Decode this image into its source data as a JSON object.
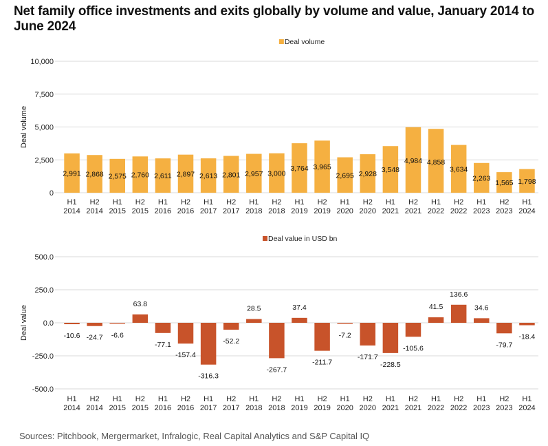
{
  "title": "Net family office investments and exits globally by volume and value, January 2014 to June 2024",
  "source": "Sources: Pitchbook, Mergermarket, Infralogic, Real Capital Analytics and S&P Capital IQ",
  "chart_data": [
    {
      "type": "bar",
      "title": "",
      "legend": "Deal volume",
      "legend_position": "top-center",
      "color": "#F5B041",
      "xlabel": "",
      "ylabel": "Deal volume",
      "ylim": [
        0,
        10000
      ],
      "yticks": [
        0,
        2500,
        5000,
        7500,
        10000
      ],
      "ytick_labels": [
        "0",
        "2,500",
        "5,000",
        "7,500",
        "10,000"
      ],
      "grid": true,
      "categories": [
        [
          "H1",
          "2014"
        ],
        [
          "H2",
          "2014"
        ],
        [
          "H1",
          "2015"
        ],
        [
          "H2",
          "2015"
        ],
        [
          "H1",
          "2016"
        ],
        [
          "H2",
          "2016"
        ],
        [
          "H1",
          "2017"
        ],
        [
          "H2",
          "2017"
        ],
        [
          "H1",
          "2018"
        ],
        [
          "H2",
          "2018"
        ],
        [
          "H1",
          "2019"
        ],
        [
          "H2",
          "2019"
        ],
        [
          "H1",
          "2020"
        ],
        [
          "H2",
          "2020"
        ],
        [
          "H1",
          "2021"
        ],
        [
          "H2",
          "2021"
        ],
        [
          "H1",
          "2022"
        ],
        [
          "H2",
          "2022"
        ],
        [
          "H1",
          "2023"
        ],
        [
          "H2",
          "2023"
        ],
        [
          "H1",
          "2024"
        ]
      ],
      "values": [
        2991,
        2868,
        2575,
        2760,
        2611,
        2897,
        2613,
        2801,
        2957,
        3000,
        3764,
        3965,
        2695,
        2928,
        3548,
        4984,
        4858,
        3634,
        2263,
        1565,
        1798
      ],
      "data_labels": [
        "2,991",
        "2,868",
        "2,575",
        "2,760",
        "2,611",
        "2,897",
        "2,613",
        "2,801",
        "2,957",
        "3,000",
        "3,764",
        "3,965",
        "2,695",
        "2,928",
        "3,548",
        "4,984",
        "4,858",
        "3,634",
        "2,263",
        "1,565",
        "1,798"
      ]
    },
    {
      "type": "bar",
      "title": "",
      "legend": "Deal value in USD bn",
      "legend_position": "top-center",
      "color": "#C8532A",
      "xlabel": "",
      "ylabel": "Deal value",
      "ylim": [
        -500,
        500
      ],
      "yticks": [
        -500,
        -250,
        0,
        250,
        500
      ],
      "ytick_labels": [
        "-500.0",
        "-250.0",
        "0.0",
        "250.0",
        "500.0"
      ],
      "grid": true,
      "categories": [
        [
          "H1",
          "2014"
        ],
        [
          "H2",
          "2014"
        ],
        [
          "H1",
          "2015"
        ],
        [
          "H2",
          "2015"
        ],
        [
          "H1",
          "2016"
        ],
        [
          "H2",
          "2016"
        ],
        [
          "H1",
          "2017"
        ],
        [
          "H2",
          "2017"
        ],
        [
          "H1",
          "2018"
        ],
        [
          "H2",
          "2018"
        ],
        [
          "H1",
          "2019"
        ],
        [
          "H2",
          "2019"
        ],
        [
          "H1",
          "2020"
        ],
        [
          "H2",
          "2020"
        ],
        [
          "H1",
          "2021"
        ],
        [
          "H2",
          "2021"
        ],
        [
          "H1",
          "2022"
        ],
        [
          "H2",
          "2022"
        ],
        [
          "H1",
          "2023"
        ],
        [
          "H2",
          "2023"
        ],
        [
          "H1",
          "2024"
        ]
      ],
      "values": [
        -10.6,
        -24.7,
        -6.6,
        63.8,
        -77.1,
        -157.4,
        -316.3,
        -52.2,
        28.5,
        -267.7,
        37.4,
        -211.7,
        -7.2,
        -171.7,
        -228.5,
        -105.6,
        41.5,
        136.6,
        34.6,
        -79.7,
        -18.4
      ],
      "data_labels": [
        "-10.6",
        "-24.7",
        "-6.6",
        "63.8",
        "-77.1",
        "-157.4",
        "-316.3",
        "-52.2",
        "28.5",
        "-267.7",
        "37.4",
        "-211.7",
        "-7.2",
        "-171.7",
        "-228.5",
        "-105.6",
        "41.5",
        "136.6",
        "34.6",
        "-79.7",
        "-18.4"
      ]
    }
  ]
}
